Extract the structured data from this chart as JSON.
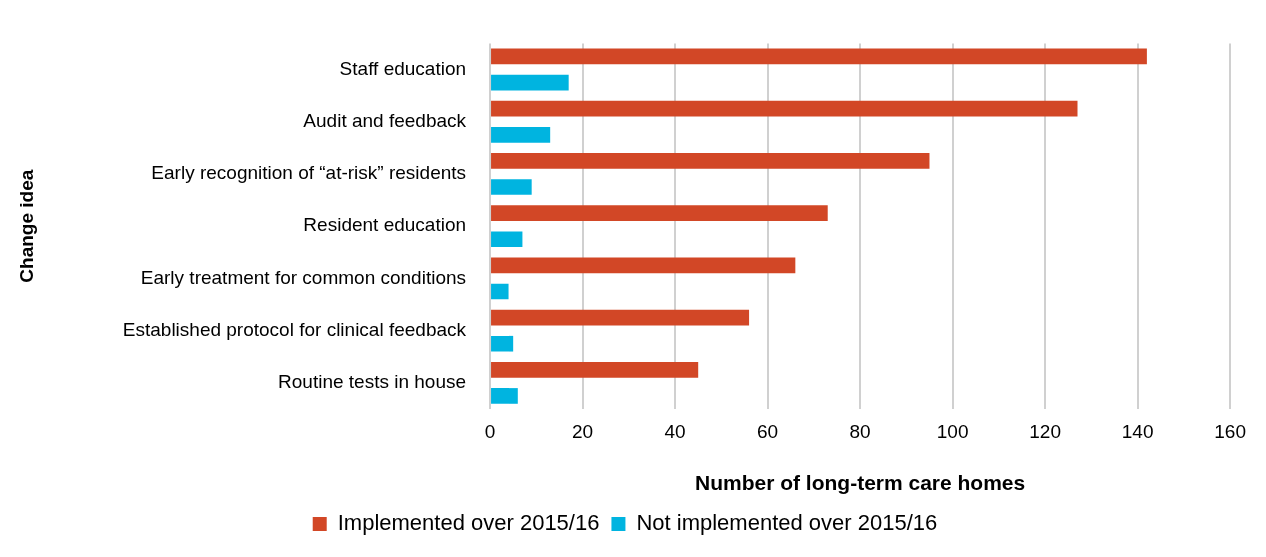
{
  "chart_data": {
    "type": "bar",
    "orientation": "horizontal",
    "categories": [
      "Staff education",
      "Audit and feedback",
      "Early recognition of “at-risk” residents",
      "Resident education",
      "Early treatment for common conditions",
      "Established protocol for clinical feedback",
      "Routine tests in house"
    ],
    "series": [
      {
        "name": "Implemented over 2015/16",
        "color": "#d24726",
        "values": [
          142,
          127,
          95,
          73,
          66,
          56,
          45
        ]
      },
      {
        "name": "Not implemented over 2015/16",
        "color": "#00b4e0",
        "values": [
          17,
          13,
          9,
          7,
          4,
          5,
          6
        ]
      }
    ],
    "xlim": [
      0,
      160
    ],
    "xticks": [
      0,
      20,
      40,
      60,
      80,
      100,
      120,
      140,
      160
    ],
    "xlabel": "Number of long-term care homes",
    "ylabel": "Change idea",
    "grid": "x",
    "legend": "bottom"
  }
}
